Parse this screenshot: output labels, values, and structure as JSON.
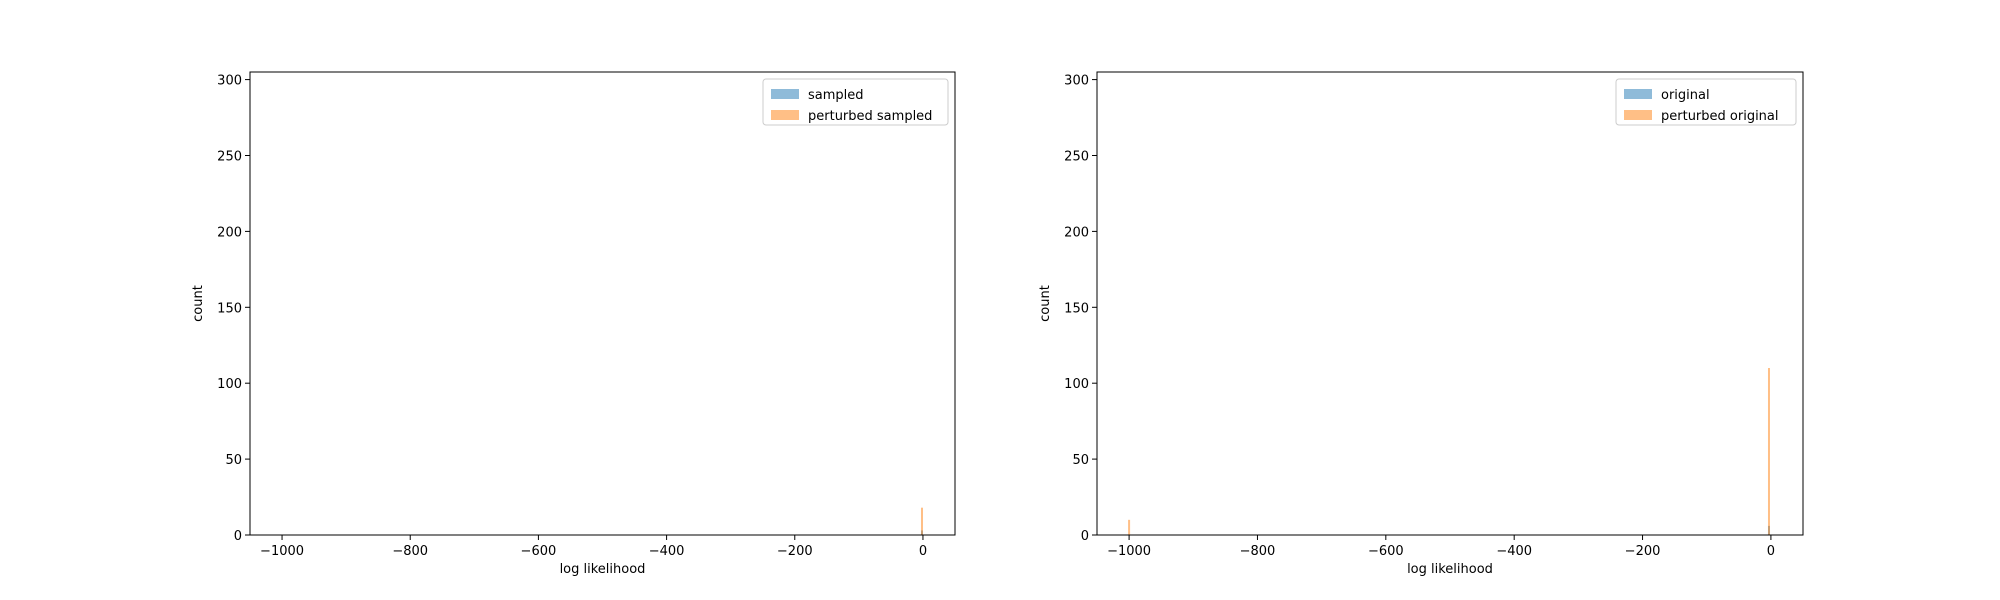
{
  "chart_data": [
    {
      "type": "bar",
      "chart_style": "histogram",
      "xlabel": "log likelihood",
      "ylabel": "count",
      "xlim": [
        -1050,
        50
      ],
      "ylim": [
        0,
        305
      ],
      "xticks": [
        -1000,
        -800,
        -600,
        -400,
        -200,
        0
      ],
      "xtick_labels": [
        "−1000",
        "−800",
        "−600",
        "−400",
        "−200",
        "0"
      ],
      "yticks": [
        0,
        50,
        100,
        150,
        200,
        250,
        300
      ],
      "ytick_labels": [
        "0",
        "50",
        "100",
        "150",
        "200",
        "250",
        "300"
      ],
      "grid": false,
      "legend": {
        "position": "top-right"
      },
      "series": [
        {
          "name": "sampled",
          "color": "#1f77b4",
          "alpha": 0.5,
          "bins": [
            {
              "x": -1.5,
              "count": 3
            }
          ]
        },
        {
          "name": "perturbed sampled",
          "color": "#ff7f0e",
          "alpha": 0.5,
          "bins": [
            {
              "x": -1.5,
              "count": 18
            }
          ]
        }
      ]
    },
    {
      "type": "bar",
      "chart_style": "histogram",
      "xlabel": "log likelihood",
      "ylabel": "count",
      "xlim": [
        -1050,
        50
      ],
      "ylim": [
        0,
        305
      ],
      "xticks": [
        -1000,
        -800,
        -600,
        -400,
        -200,
        0
      ],
      "xtick_labels": [
        "−1000",
        "−800",
        "−600",
        "−400",
        "−200",
        "0"
      ],
      "yticks": [
        0,
        50,
        100,
        150,
        200,
        250,
        300
      ],
      "ytick_labels": [
        "0",
        "50",
        "100",
        "150",
        "200",
        "250",
        "300"
      ],
      "grid": false,
      "legend": {
        "position": "top-right"
      },
      "series": [
        {
          "name": "original",
          "color": "#1f77b4",
          "alpha": 0.5,
          "bins": [
            {
              "x": -3,
              "count": 6
            }
          ]
        },
        {
          "name": "perturbed original",
          "color": "#ff7f0e",
          "alpha": 0.5,
          "bins": [
            {
              "x": -1000,
              "count": 10
            },
            {
              "x": -3,
              "count": 110
            }
          ]
        }
      ]
    }
  ]
}
